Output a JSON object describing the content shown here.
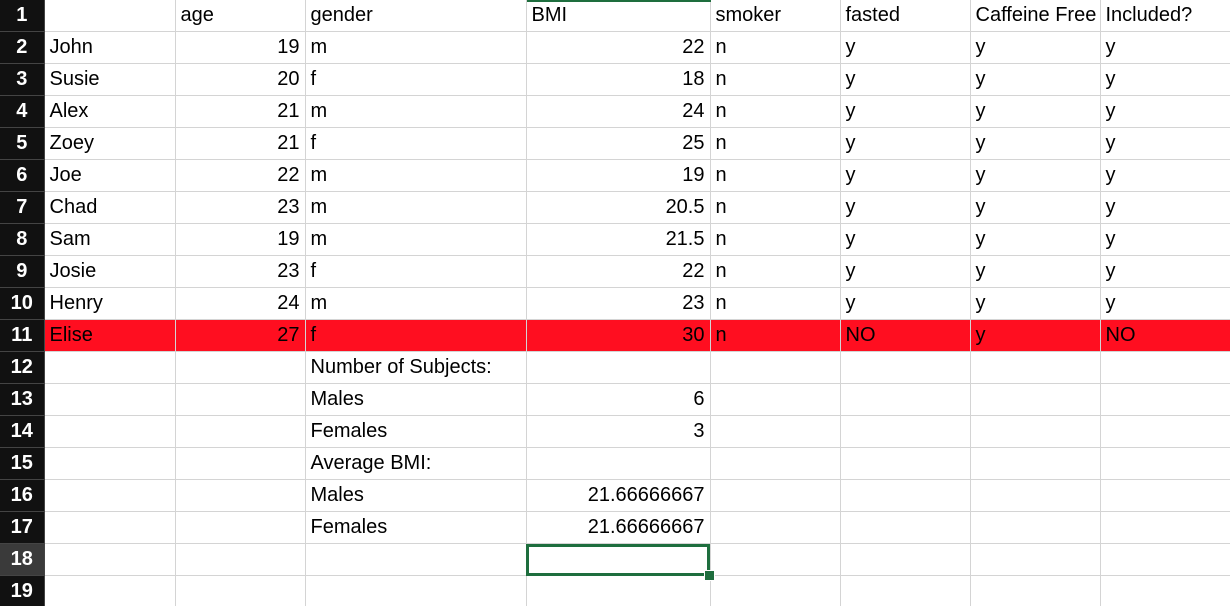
{
  "row_numbers": [
    "1",
    "2",
    "3",
    "4",
    "5",
    "6",
    "7",
    "8",
    "9",
    "10",
    "11",
    "12",
    "13",
    "14",
    "15",
    "16",
    "17",
    "18",
    "19"
  ],
  "headers": {
    "name": "",
    "age": "age",
    "gender": "gender",
    "bmi": "BMI",
    "smoker": "smoker",
    "fasted": "fasted",
    "caffeine_free": "Caffeine Free",
    "included": "Included?"
  },
  "subjects": [
    {
      "name": "John",
      "age": "19",
      "gender": "m",
      "bmi": "22",
      "smoker": "n",
      "fasted": "y",
      "caffeine_free": "y",
      "included": "y"
    },
    {
      "name": "Susie",
      "age": "20",
      "gender": "f",
      "bmi": "18",
      "smoker": "n",
      "fasted": "y",
      "caffeine_free": "y",
      "included": "y"
    },
    {
      "name": "Alex",
      "age": "21",
      "gender": "m",
      "bmi": "24",
      "smoker": "n",
      "fasted": "y",
      "caffeine_free": "y",
      "included": "y"
    },
    {
      "name": "Zoey",
      "age": "21",
      "gender": "f",
      "bmi": "25",
      "smoker": "n",
      "fasted": "y",
      "caffeine_free": "y",
      "included": "y"
    },
    {
      "name": "Joe",
      "age": "22",
      "gender": "m",
      "bmi": "19",
      "smoker": "n",
      "fasted": "y",
      "caffeine_free": "y",
      "included": "y"
    },
    {
      "name": "Chad",
      "age": "23",
      "gender": "m",
      "bmi": "20.5",
      "smoker": "n",
      "fasted": "y",
      "caffeine_free": "y",
      "included": "y"
    },
    {
      "name": "Sam",
      "age": "19",
      "gender": "m",
      "bmi": "21.5",
      "smoker": "n",
      "fasted": "y",
      "caffeine_free": "y",
      "included": "y"
    },
    {
      "name": "Josie",
      "age": "23",
      "gender": "f",
      "bmi": "22",
      "smoker": "n",
      "fasted": "y",
      "caffeine_free": "y",
      "included": "y"
    },
    {
      "name": "Henry",
      "age": "24",
      "gender": "m",
      "bmi": "23",
      "smoker": "n",
      "fasted": "y",
      "caffeine_free": "y",
      "included": "y"
    },
    {
      "name": "Elise",
      "age": "27",
      "gender": "f",
      "bmi": "30",
      "smoker": "n",
      "fasted": "NO",
      "caffeine_free": "y",
      "included": "NO"
    }
  ],
  "summary": {
    "subjects_label": "Number of Subjects:",
    "males_label": "Males",
    "males_count": "6",
    "females_label": "Females",
    "females_count": "3",
    "avg_bmi_label": "Average BMI:",
    "males_avg_label": "Males",
    "males_avg_bmi": "21.66666667",
    "females_avg_label": "Females",
    "females_avg_bmi": "21.66666667"
  },
  "colors": {
    "highlight_row": "#ff0e20",
    "selection": "#1e6e3e",
    "row_header_bg": "#111111"
  }
}
